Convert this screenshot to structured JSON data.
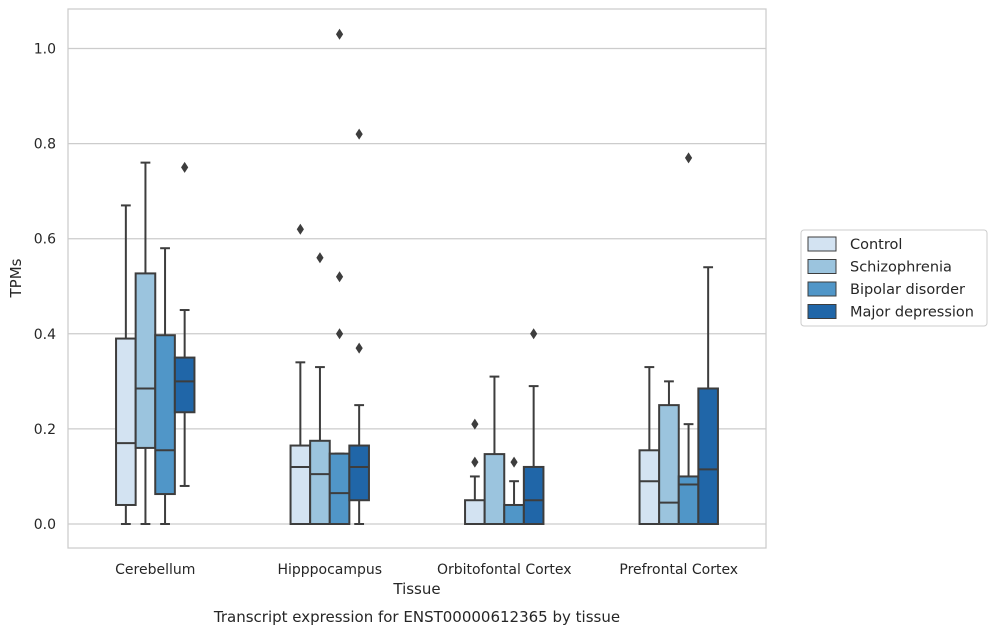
{
  "chart_data": {
    "type": "box",
    "title": "",
    "caption": "Transcript expression for ENST00000612365 by tissue",
    "xlabel": "Tissue",
    "ylabel": "TPMs",
    "ylim": [
      -0.05,
      1.08
    ],
    "yticks": [
      "0.0",
      "0.2",
      "0.4",
      "0.6",
      "0.8",
      "1.0"
    ],
    "grid": true,
    "legend_position": "right",
    "categories": [
      "Cerebellum",
      "Hipppocampus",
      "Orbitofontal Cortex",
      "Prefrontal Cortex"
    ],
    "series": [
      {
        "name": "Control",
        "color": "#d3e3f2",
        "boxes": [
          {
            "whisker_low": 0.0,
            "q1": 0.04,
            "median": 0.17,
            "q3": 0.39,
            "whisker_high": 0.67,
            "outliers": []
          },
          {
            "whisker_low": 0.0,
            "q1": 0.0,
            "median": 0.12,
            "q3": 0.165,
            "whisker_high": 0.34,
            "outliers": [
              0.62
            ]
          },
          {
            "whisker_low": 0.0,
            "q1": 0.0,
            "median": 0.0,
            "q3": 0.05,
            "whisker_high": 0.1,
            "outliers": [
              0.13,
              0.21
            ]
          },
          {
            "whisker_low": 0.0,
            "q1": 0.0,
            "median": 0.09,
            "q3": 0.155,
            "whisker_high": 0.33,
            "outliers": []
          }
        ]
      },
      {
        "name": "Schizophrenia",
        "color": "#9bc4de",
        "boxes": [
          {
            "whisker_low": 0.0,
            "q1": 0.16,
            "median": 0.285,
            "q3": 0.527,
            "whisker_high": 0.76,
            "outliers": []
          },
          {
            "whisker_low": 0.0,
            "q1": 0.0,
            "median": 0.105,
            "q3": 0.175,
            "whisker_high": 0.33,
            "outliers": [
              0.56
            ]
          },
          {
            "whisker_low": 0.0,
            "q1": 0.0,
            "median": 0.0,
            "q3": 0.147,
            "whisker_high": 0.31,
            "outliers": []
          },
          {
            "whisker_low": 0.0,
            "q1": 0.0,
            "median": 0.045,
            "q3": 0.25,
            "whisker_high": 0.3,
            "outliers": []
          }
        ]
      },
      {
        "name": "Bipolar disorder",
        "color": "#5096c8",
        "boxes": [
          {
            "whisker_low": 0.0,
            "q1": 0.063,
            "median": 0.155,
            "q3": 0.397,
            "whisker_high": 0.58,
            "outliers": []
          },
          {
            "whisker_low": 0.0,
            "q1": 0.0,
            "median": 0.065,
            "q3": 0.148,
            "whisker_high": 0.148,
            "outliers": [
              0.4,
              0.52,
              1.03
            ]
          },
          {
            "whisker_low": 0.0,
            "q1": 0.0,
            "median": 0.0,
            "q3": 0.04,
            "whisker_high": 0.09,
            "outliers": [
              0.13
            ]
          },
          {
            "whisker_low": 0.0,
            "q1": 0.0,
            "median": 0.083,
            "q3": 0.1,
            "whisker_high": 0.21,
            "outliers": [
              0.77
            ]
          }
        ]
      },
      {
        "name": "Major depression",
        "color": "#2066a8",
        "boxes": [
          {
            "whisker_low": 0.08,
            "q1": 0.235,
            "median": 0.3,
            "q3": 0.35,
            "whisker_high": 0.45,
            "outliers": [
              0.75
            ]
          },
          {
            "whisker_low": 0.0,
            "q1": 0.05,
            "median": 0.12,
            "q3": 0.165,
            "whisker_high": 0.25,
            "outliers": [
              0.37,
              0.82
            ]
          },
          {
            "whisker_low": 0.0,
            "q1": 0.0,
            "median": 0.05,
            "q3": 0.12,
            "whisker_high": 0.29,
            "outliers": [
              0.4
            ]
          },
          {
            "whisker_low": 0.0,
            "q1": 0.0,
            "median": 0.115,
            "q3": 0.285,
            "whisker_high": 0.54,
            "outliers": []
          }
        ]
      }
    ]
  }
}
